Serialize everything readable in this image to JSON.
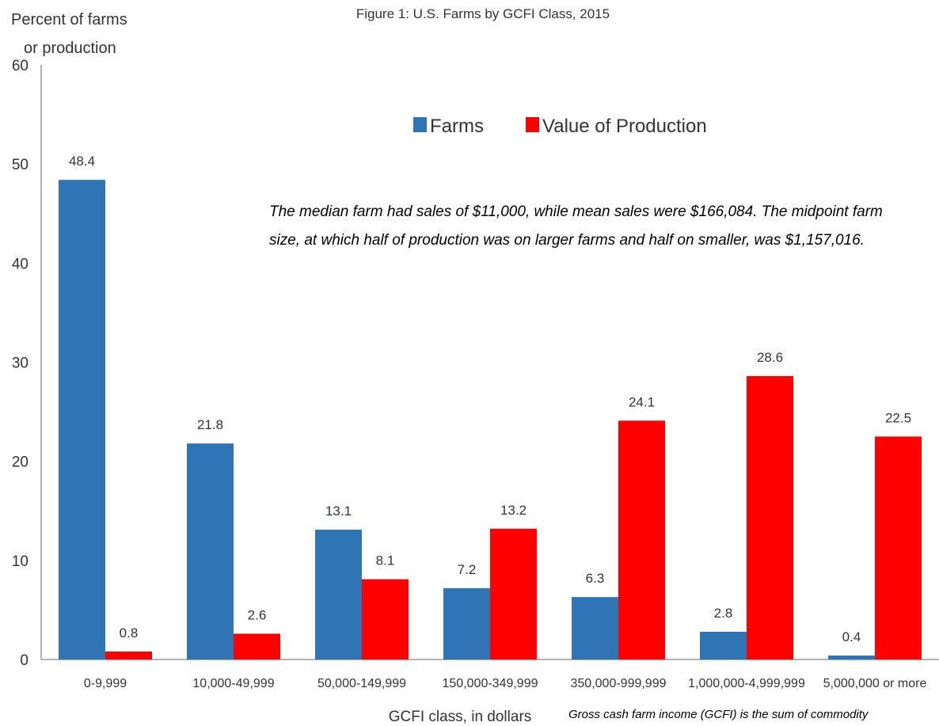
{
  "chart_data": {
    "type": "bar",
    "title": "Figure 1: U.S. Farms by GCFI Class, 2015",
    "ylabel_line1": "Percent of farms",
    "ylabel_line2": "or production",
    "xlabel": "GCFI class, in dollars",
    "ylim": [
      0,
      60
    ],
    "yticks": [
      0,
      10,
      20,
      30,
      40,
      50,
      60
    ],
    "grid": false,
    "legend_placement": "top-center",
    "categories": [
      "0-9,999",
      "10,000-49,999",
      "50,000-149,999",
      "150,000-349,999",
      "350,000-999,999",
      "1,000,000-4,999,999",
      "5,000,000 or more"
    ],
    "series": [
      {
        "name": "Farms",
        "color": "#2E75B6",
        "values": [
          48.4,
          21.8,
          13.1,
          7.2,
          6.3,
          2.8,
          0.4
        ]
      },
      {
        "name": "Value of Production",
        "color": "#FF0000",
        "values": [
          0.8,
          2.6,
          8.1,
          13.2,
          24.1,
          28.6,
          22.5
        ]
      }
    ],
    "annotation_line1": "The median farm had sales of $11,000, while mean sales were $166,084. The midpoint farm",
    "annotation_line2": "size, at which half of production was on larger farms and half on smaller, was $1,157,016.",
    "footnote": "Gross cash farm income (GCFI) is the sum of commodity"
  }
}
